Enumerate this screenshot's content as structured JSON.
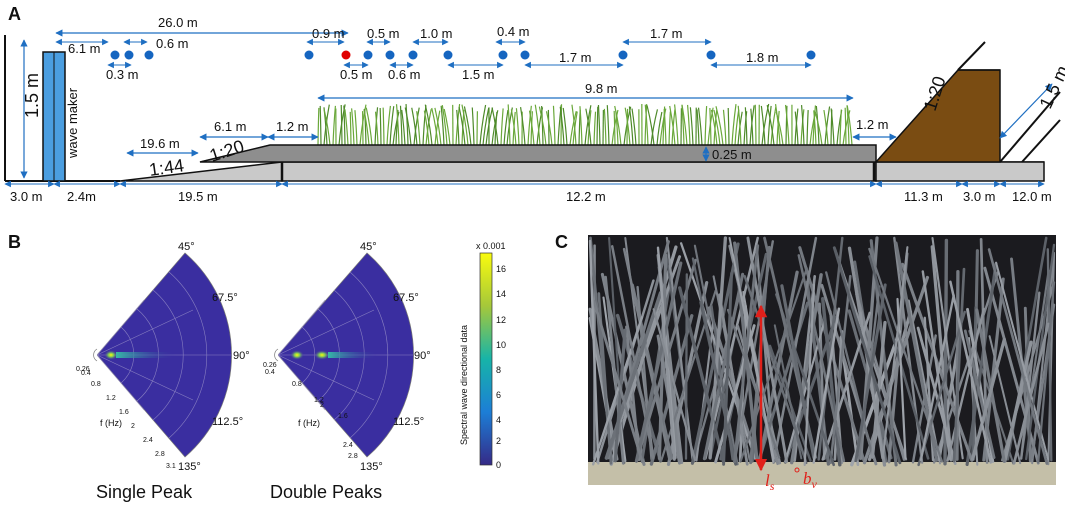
{
  "panels": {
    "a": "A",
    "b": "B",
    "c": "C"
  },
  "dimensions": {
    "total_length": "26.0 m",
    "d61": "6.1 m",
    "d06a": "0.6 m",
    "d03": "0.3 m",
    "d09": "0.9 m",
    "d05a": "0.5 m",
    "d10": "1.0 m",
    "d04": "0.4 m",
    "d05b": "0.5 m",
    "d06b": "0.6 m",
    "d15": "1.5 m",
    "d17a": "1.7 m",
    "d17b": "1.7 m",
    "d18": "1.8 m",
    "vegetation_length": "9.8 m",
    "depth_tank": "1.5 m",
    "wave_maker": "wave maker",
    "slope_44_len": "19.6 m",
    "slope_20_len": "6.1 m",
    "gap_12a": "1.2 m",
    "slope_44": "1:44",
    "slope_20": "1:20",
    "gap_12b": "1.2 m",
    "beach_slope": "1:20",
    "beach_height": "1.5 m",
    "step_height": "0.25 m",
    "bottom": [
      "3.0 m",
      "2.4m",
      "19.5 m",
      "12.2 m",
      "11.3 m",
      "3.0 m",
      "12.0 m"
    ]
  },
  "polar_plots": [
    {
      "title": "Single Peak",
      "angles": [
        "45°",
        "67.5°",
        "90°",
        "112.5°",
        "135°"
      ],
      "freq_label": "f (Hz)",
      "freq_ticks": [
        "0.26",
        "0.4",
        "0.8",
        "1.2",
        "1.6",
        "2",
        "2.4",
        "2.8",
        "3.1"
      ]
    },
    {
      "title": "Double Peaks",
      "angles": [
        "45°",
        "67.5°",
        "90°",
        "112.5°",
        "135°"
      ],
      "freq_label": "f (Hz)",
      "freq_ticks": [
        "0.26",
        "0.4",
        "0.8",
        "1.2",
        "1.6",
        "2",
        "2.4",
        "2.8"
      ]
    }
  ],
  "colorbar": {
    "multiplier": "x 0.001",
    "label": "Spectral wave directional data",
    "ticks": [
      "16",
      "14",
      "12",
      "10",
      "8",
      "6",
      "4",
      "2",
      "0"
    ]
  },
  "photo": {
    "label_ls": "l",
    "label_ls_sub": "s",
    "label_bv": "b",
    "label_bv_sub": "v"
  },
  "colors": {
    "tank_blue": "#4b9ee0",
    "arrow_blue": "#1f6fc2",
    "gauge_blue": "#1565c0",
    "gauge_red": "#e00000",
    "beach_brown": "#7a4c12",
    "polar_bg": "#3a2ea0",
    "photo_dark": "#26262a"
  }
}
